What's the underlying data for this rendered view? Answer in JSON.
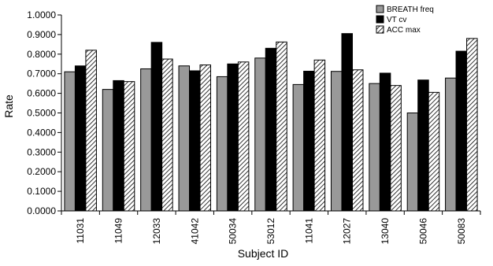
{
  "chart_data": {
    "type": "bar",
    "title": "",
    "xlabel": "Subject ID",
    "ylabel": "Rate",
    "ylim": [
      0,
      1
    ],
    "ytick_step": 0.1,
    "ytick_labels": [
      "0.0000",
      "0.1000",
      "0.2000",
      "0.3000",
      "0.4000",
      "0.5000",
      "0.6000",
      "0.7000",
      "0.8000",
      "0.9000",
      "1.0000"
    ],
    "grid": false,
    "legend_position": "top-right",
    "categories": [
      "11031",
      "11049",
      "12033",
      "41042",
      "50034",
      "53012",
      "11041",
      "12027",
      "13040",
      "50046",
      "50083"
    ],
    "series": [
      {
        "name": "BREATH freq",
        "fill": "#999999",
        "pattern": "solid",
        "values": [
          0.71,
          0.62,
          0.725,
          0.74,
          0.685,
          0.78,
          0.645,
          0.712,
          0.65,
          0.5,
          0.678
        ]
      },
      {
        "name": "VT cv",
        "fill": "#000000",
        "pattern": "solid",
        "values": [
          0.74,
          0.665,
          0.86,
          0.715,
          0.75,
          0.83,
          0.713,
          0.905,
          0.703,
          0.668,
          0.815
        ]
      },
      {
        "name": "ACC max",
        "fill": "#ffffff",
        "pattern": "diagonal-hatch",
        "values": [
          0.82,
          0.66,
          0.775,
          0.745,
          0.76,
          0.862,
          0.77,
          0.72,
          0.64,
          0.605,
          0.88
        ]
      }
    ]
  }
}
